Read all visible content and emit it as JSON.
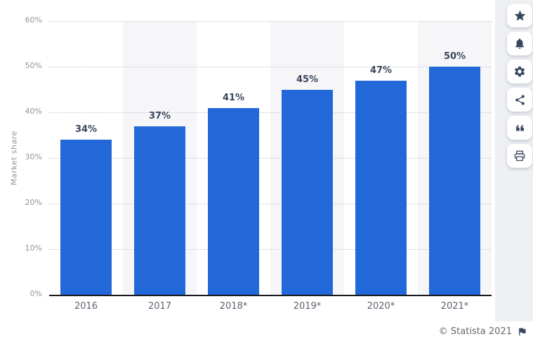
{
  "chart_data": {
    "type": "bar",
    "categories": [
      "2016",
      "2017",
      "2018*",
      "2019*",
      "2020*",
      "2021*"
    ],
    "values": [
      34,
      37,
      41,
      45,
      47,
      50
    ],
    "value_labels": [
      "34%",
      "37%",
      "41%",
      "45%",
      "47%",
      "50%"
    ],
    "title": "",
    "xlabel": "",
    "ylabel": "Market share",
    "ylim": [
      0,
      60
    ],
    "ytick_step": 10,
    "ytick_labels": [
      "0%",
      "10%",
      "20%",
      "30%",
      "40%",
      "50%",
      "60%"
    ],
    "grid": "horizontal-dotted",
    "legend": "none",
    "bar_color": "#2368d9",
    "alt_band_color": "#f6f6f8",
    "value_label_color": "#3b455c"
  },
  "sidebar": {
    "icon_color": "#3a4760",
    "items": [
      {
        "name": "favorite",
        "icon": "star-icon"
      },
      {
        "name": "notifications",
        "icon": "bell-icon"
      },
      {
        "name": "settings",
        "icon": "gear-icon"
      },
      {
        "name": "share",
        "icon": "share-icon"
      },
      {
        "name": "citation",
        "icon": "quote-icon"
      },
      {
        "name": "print",
        "icon": "printer-icon"
      }
    ]
  },
  "footer": {
    "copyright": "© Statista 2021",
    "flag_icon": "flag-icon"
  }
}
